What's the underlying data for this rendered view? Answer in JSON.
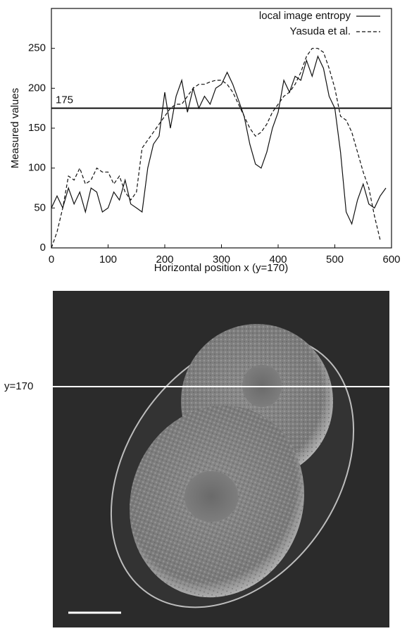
{
  "chart_data": {
    "type": "line",
    "xlabel": "Horizontal position x (y=170)",
    "ylabel": "Measured values",
    "x": [
      0,
      10,
      20,
      30,
      40,
      50,
      60,
      70,
      80,
      90,
      100,
      110,
      120,
      130,
      140,
      150,
      160,
      170,
      180,
      190,
      200,
      210,
      220,
      230,
      240,
      250,
      260,
      270,
      280,
      290,
      300,
      310,
      320,
      330,
      340,
      350,
      360,
      370,
      380,
      390,
      400,
      410,
      420,
      430,
      440,
      450,
      460,
      470,
      480,
      490,
      500,
      510,
      520,
      530,
      540,
      550,
      560,
      570,
      580,
      590
    ],
    "series": [
      {
        "name": "local image entropy",
        "color": "#111111",
        "dash": "solid",
        "values": [
          50,
          65,
          50,
          75,
          55,
          70,
          45,
          75,
          70,
          45,
          50,
          70,
          60,
          85,
          55,
          50,
          45,
          100,
          130,
          140,
          195,
          150,
          190,
          210,
          170,
          200,
          175,
          190,
          180,
          200,
          205,
          220,
          205,
          185,
          165,
          130,
          105,
          100,
          120,
          150,
          170,
          210,
          195,
          215,
          210,
          235,
          215,
          240,
          225,
          190,
          175,
          120,
          45,
          30,
          60,
          80,
          55,
          50,
          65,
          75
        ]
      },
      {
        "name": "Yasuda et al.",
        "color": "#111111",
        "dash": "dashed",
        "values": [
          0,
          20,
          50,
          90,
          85,
          100,
          80,
          85,
          100,
          95,
          95,
          80,
          90,
          70,
          60,
          70,
          125,
          135,
          145,
          155,
          165,
          175,
          180,
          180,
          190,
          200,
          205,
          205,
          208,
          210,
          210,
          205,
          195,
          180,
          165,
          150,
          140,
          145,
          155,
          170,
          180,
          190,
          195,
          205,
          220,
          240,
          250,
          250,
          245,
          225,
          200,
          165,
          160,
          145,
          120,
          95,
          75,
          40,
          10,
          null
        ]
      }
    ],
    "threshold": 175,
    "xlim": [
      0,
      600
    ],
    "xticks": [
      0,
      100,
      200,
      300,
      400,
      500,
      600
    ],
    "ylim": [
      0,
      300
    ],
    "yticks": [
      0,
      50,
      100,
      150,
      200,
      250
    ],
    "legend": "upper right"
  },
  "image": {
    "line_label": "y=170"
  }
}
